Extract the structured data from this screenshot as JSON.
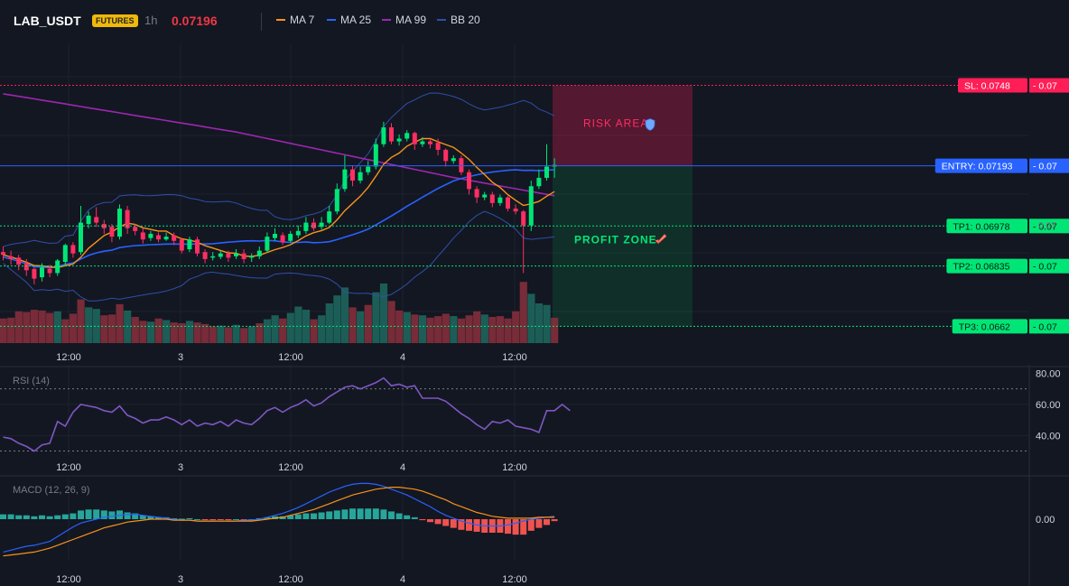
{
  "header": {
    "symbol": "LAB_USDT",
    "badge": "FUTURES",
    "interval": "1h",
    "price": "0.07196",
    "legend": [
      {
        "label": "MA 7",
        "color": "#f7931a"
      },
      {
        "label": "MA 25",
        "color": "#2962ff"
      },
      {
        "label": "MA 99",
        "color": "#9c27b0"
      },
      {
        "label": "BB 20",
        "color": "#2f4fa8"
      }
    ]
  },
  "colors": {
    "up": "#26a69a",
    "up_candle": "#00e676",
    "down": "#f23645",
    "down_candle": "#ff2e63",
    "sl": "#ff1e56",
    "entry": "#2962ff",
    "tp": "#00e676",
    "rsi": "#7e57c2",
    "macd": "#2962ff",
    "signal": "#f7931a",
    "hist_up": "#26a69a",
    "hist_down": "#ef5350"
  },
  "chart_data": [
    {
      "type": "candlestick",
      "price_range": [
        0.0656,
        0.0763
      ],
      "x_ticks": [
        "12:00",
        "3",
        "12:00",
        "4",
        "12:00"
      ],
      "levels": {
        "sl": {
          "label": "SL: 0.0748",
          "value": 0.0748,
          "tag": "0.07"
        },
        "entry": {
          "label": "ENTRY: 0.07193",
          "value": 0.07193,
          "tag": "0.07"
        },
        "tp1": {
          "label": "TP1: 0.06978",
          "value": 0.06978,
          "tag": "0.07"
        },
        "tp2": {
          "label": "TP2: 0.06835",
          "value": 0.06835,
          "tag": "0.07"
        },
        "tp3": {
          "label": "TP3: 0.0662",
          "value": 0.0662,
          "tag": "0.07"
        }
      },
      "axis_partial_label": "0.07",
      "zones": {
        "risk": "RISK AREA",
        "risk_icon": "shield-icon",
        "profit": "PROFIT ZONE",
        "profit_icon": "rocket-icon"
      },
      "candles": [
        [
          0.06885,
          0.06875,
          0.06905,
          0.06855
        ],
        [
          0.0687,
          0.0686,
          0.0689,
          0.0684
        ],
        [
          0.06865,
          0.0684,
          0.06875,
          0.0682
        ],
        [
          0.06845,
          0.0682,
          0.0686,
          0.068
        ],
        [
          0.06825,
          0.0679,
          0.0683,
          0.0677
        ],
        [
          0.06795,
          0.0683,
          0.06845,
          0.0678
        ],
        [
          0.06825,
          0.0681,
          0.0684,
          0.06795
        ],
        [
          0.0681,
          0.06855,
          0.0686,
          0.068
        ],
        [
          0.0685,
          0.0691,
          0.06915,
          0.0684
        ],
        [
          0.0691,
          0.0688,
          0.0692,
          0.06865
        ],
        [
          0.06885,
          0.0699,
          0.0705,
          0.06875
        ],
        [
          0.06985,
          0.07015,
          0.0703,
          0.0697
        ],
        [
          0.0701,
          0.0699,
          0.07045,
          0.06975
        ],
        [
          0.06985,
          0.0697,
          0.07,
          0.0695
        ],
        [
          0.06975,
          0.0694,
          0.06985,
          0.0692
        ],
        [
          0.0694,
          0.0704,
          0.07055,
          0.0693
        ],
        [
          0.07035,
          0.0697,
          0.0705,
          0.0695
        ],
        [
          0.06975,
          0.0696,
          0.06985,
          0.06945
        ],
        [
          0.06955,
          0.0693,
          0.0697,
          0.06915
        ],
        [
          0.06935,
          0.0695,
          0.0696,
          0.06925
        ],
        [
          0.06945,
          0.0693,
          0.06955,
          0.0692
        ],
        [
          0.0693,
          0.0694,
          0.06955,
          0.06925
        ],
        [
          0.06945,
          0.06925,
          0.06955,
          0.0691
        ],
        [
          0.0693,
          0.0689,
          0.06935,
          0.0688
        ],
        [
          0.06895,
          0.0693,
          0.0694,
          0.06885
        ],
        [
          0.0693,
          0.0688,
          0.0694,
          0.0687
        ],
        [
          0.06885,
          0.0686,
          0.06895,
          0.06845
        ],
        [
          0.06865,
          0.0687,
          0.06885,
          0.06855
        ],
        [
          0.06868,
          0.0688,
          0.0689,
          0.0686
        ],
        [
          0.0688,
          0.06865,
          0.0689,
          0.0685
        ],
        [
          0.0687,
          0.0688,
          0.06895,
          0.0686
        ],
        [
          0.0688,
          0.0686,
          0.06895,
          0.06845
        ],
        [
          0.06865,
          0.0687,
          0.0688,
          0.0685
        ],
        [
          0.0687,
          0.0689,
          0.06905,
          0.0686
        ],
        [
          0.0689,
          0.0694,
          0.06955,
          0.06885
        ],
        [
          0.06935,
          0.0695,
          0.0697,
          0.06925
        ],
        [
          0.06945,
          0.0692,
          0.06955,
          0.0691
        ],
        [
          0.06925,
          0.0695,
          0.0696,
          0.0692
        ],
        [
          0.06945,
          0.0696,
          0.0698,
          0.06935
        ],
        [
          0.0696,
          0.0699,
          0.0701,
          0.0695
        ],
        [
          0.0699,
          0.0697,
          0.07005,
          0.0696
        ],
        [
          0.06975,
          0.0699,
          0.0701,
          0.06965
        ],
        [
          0.0699,
          0.0703,
          0.0705,
          0.06985
        ],
        [
          0.0703,
          0.0711,
          0.0713,
          0.0702
        ],
        [
          0.0711,
          0.0718,
          0.0723,
          0.071
        ],
        [
          0.0718,
          0.0714,
          0.07195,
          0.0712
        ],
        [
          0.0714,
          0.0717,
          0.0719,
          0.0713
        ],
        [
          0.0717,
          0.0719,
          0.0721,
          0.0716
        ],
        [
          0.0719,
          0.0727,
          0.0729,
          0.0718
        ],
        [
          0.0727,
          0.0733,
          0.0735,
          0.0726
        ],
        [
          0.0733,
          0.0728,
          0.07345,
          0.0727
        ],
        [
          0.0728,
          0.0729,
          0.07305,
          0.07265
        ],
        [
          0.0729,
          0.0731,
          0.0732,
          0.0728
        ],
        [
          0.0731,
          0.0727,
          0.07315,
          0.0725
        ],
        [
          0.0727,
          0.0728,
          0.07295,
          0.0726
        ],
        [
          0.0728,
          0.0727,
          0.0729,
          0.07255
        ],
        [
          0.07275,
          0.0725,
          0.0729,
          0.0723
        ],
        [
          0.0725,
          0.0721,
          0.07255,
          0.0719
        ],
        [
          0.0721,
          0.0722,
          0.0723,
          0.072
        ],
        [
          0.0722,
          0.0717,
          0.0723,
          0.0716
        ],
        [
          0.0717,
          0.0711,
          0.0718,
          0.0709
        ],
        [
          0.0711,
          0.0708,
          0.0712,
          0.0706
        ],
        [
          0.0708,
          0.0709,
          0.071,
          0.0707
        ],
        [
          0.0709,
          0.0706,
          0.071,
          0.07045
        ],
        [
          0.0706,
          0.0708,
          0.0709,
          0.0705
        ],
        [
          0.0708,
          0.0704,
          0.07085,
          0.0703
        ],
        [
          0.0704,
          0.0703,
          0.07055,
          0.0702
        ],
        [
          0.0703,
          0.0698,
          0.07035,
          0.0681
        ],
        [
          0.0698,
          0.0712,
          0.0714,
          0.0696
        ],
        [
          0.0712,
          0.0715,
          0.0718,
          0.0711
        ],
        [
          0.0715,
          0.0719,
          0.0727,
          0.0714
        ],
        [
          0.0719,
          0.07196,
          0.0722,
          0.0715
        ]
      ],
      "volume": [
        [
          62,
          1
        ],
        [
          64,
          1
        ],
        [
          80,
          1
        ],
        [
          78,
          1
        ],
        [
          84,
          1
        ],
        [
          82,
          1
        ],
        [
          76,
          1
        ],
        [
          80,
          0
        ],
        [
          60,
          1
        ],
        [
          74,
          1
        ],
        [
          110,
          1
        ],
        [
          90,
          0
        ],
        [
          86,
          0
        ],
        [
          70,
          1
        ],
        [
          72,
          1
        ],
        [
          98,
          1
        ],
        [
          82,
          0
        ],
        [
          66,
          1
        ],
        [
          56,
          1
        ],
        [
          54,
          0
        ],
        [
          62,
          1
        ],
        [
          58,
          0
        ],
        [
          52,
          1
        ],
        [
          50,
          1
        ],
        [
          56,
          0
        ],
        [
          52,
          1
        ],
        [
          48,
          1
        ],
        [
          42,
          1
        ],
        [
          44,
          0
        ],
        [
          40,
          1
        ],
        [
          46,
          0
        ],
        [
          38,
          1
        ],
        [
          42,
          0
        ],
        [
          50,
          1
        ],
        [
          60,
          0
        ],
        [
          70,
          0
        ],
        [
          62,
          1
        ],
        [
          76,
          0
        ],
        [
          92,
          0
        ],
        [
          84,
          0
        ],
        [
          60,
          1
        ],
        [
          70,
          0
        ],
        [
          100,
          0
        ],
        [
          120,
          0
        ],
        [
          140,
          0
        ],
        [
          90,
          1
        ],
        [
          80,
          0
        ],
        [
          96,
          1
        ],
        [
          128,
          0
        ],
        [
          150,
          0
        ],
        [
          106,
          1
        ],
        [
          82,
          1
        ],
        [
          78,
          0
        ],
        [
          72,
          1
        ],
        [
          70,
          0
        ],
        [
          64,
          1
        ],
        [
          68,
          1
        ],
        [
          74,
          1
        ],
        [
          68,
          0
        ],
        [
          62,
          1
        ],
        [
          70,
          1
        ],
        [
          80,
          1
        ],
        [
          72,
          0
        ],
        [
          66,
          1
        ],
        [
          68,
          1
        ],
        [
          62,
          1
        ],
        [
          80,
          1
        ],
        [
          154,
          1
        ],
        [
          124,
          0
        ],
        [
          100,
          0
        ],
        [
          96,
          0
        ],
        [
          64,
          1
        ]
      ]
    },
    {
      "type": "line",
      "title": "RSI (14)",
      "ylim": [
        28,
        82
      ],
      "y_ticks": [
        80.0,
        60.0,
        40.0
      ],
      "x_ticks": [
        "12:00",
        "3",
        "12:00",
        "4",
        "12:00"
      ],
      "values": [
        39,
        38,
        35,
        33,
        30,
        34,
        35,
        49,
        46,
        55,
        60,
        59,
        58,
        56,
        55,
        59,
        53,
        51,
        48,
        50,
        50,
        52,
        50,
        47,
        50,
        46,
        48,
        47,
        49,
        46,
        50,
        48,
        47,
        51,
        56,
        58,
        55,
        58,
        60,
        63,
        59,
        61,
        65,
        68,
        71,
        72,
        70,
        72,
        74,
        77,
        72,
        73,
        71,
        72,
        64,
        64,
        64,
        62,
        58,
        54,
        51,
        47,
        44,
        49,
        48,
        50,
        46,
        45,
        44,
        42,
        56,
        56,
        60,
        56
      ]
    },
    {
      "type": "bar",
      "title": "MACD (12, 26, 9)",
      "ylim": [
        -0.00042,
        0.00042
      ],
      "y_ticks": [
        0.0
      ],
      "y_tick_labels": [
        "0.00"
      ],
      "x_ticks": [
        "12:00",
        "3",
        "12:00",
        "4",
        "12:00"
      ],
      "series": [
        {
          "name": "histogram",
          "values": [
            5e-05,
            5e-05,
            4e-05,
            4e-05,
            3e-05,
            4e-05,
            3e-05,
            4e-05,
            5e-05,
            6e-05,
            9e-05,
            0.0001,
            0.0001,
            9e-05,
            8e-05,
            9e-05,
            7e-05,
            6e-05,
            4e-05,
            3e-05,
            2e-05,
            2e-05,
            1e-05,
            5e-06,
            1e-05,
            0,
            -1e-05,
            -1e-05,
            -5e-06,
            -1e-05,
            0,
            -1e-05,
            0,
            1e-05,
            2e-05,
            3e-05,
            3e-05,
            4e-05,
            5e-05,
            6e-05,
            6e-05,
            7e-05,
            8e-05,
            9e-05,
            0.0001,
            0.00011,
            0.00011,
            0.00011,
            0.00011,
            0.0001,
            8e-05,
            6e-05,
            4e-05,
            2e-05,
            -1e-05,
            -3e-05,
            -5e-05,
            -7e-05,
            -9e-05,
            -0.00011,
            -0.00012,
            -0.00013,
            -0.00014,
            -0.00014,
            -0.00014,
            -0.00015,
            -0.00016,
            -0.00016,
            -0.00012,
            -9e-05,
            -6e-05,
            -2e-05
          ]
        },
        {
          "name": "macd",
          "values": [
            -0.00034,
            -0.00032,
            -0.0003,
            -0.00028,
            -0.00027,
            -0.00025,
            -0.00023,
            -0.00018,
            -0.00013,
            -8e-05,
            -4e-05,
            -2e-05,
            0.0,
            2e-05,
            3e-05,
            4e-05,
            5e-05,
            5e-05,
            4e-05,
            3e-05,
            2e-05,
            1e-05,
            0.0,
            -1e-05,
            -1e-05,
            -2e-05,
            -2e-05,
            -2e-05,
            -2e-05,
            -2e-05,
            -2e-05,
            -1e-05,
            -1e-05,
            0.0,
            2e-05,
            4e-05,
            6e-05,
            9e-05,
            0.00012,
            0.00016,
            0.0002,
            0.00024,
            0.00028,
            0.00031,
            0.00034,
            0.00036,
            0.00037,
            0.00037,
            0.00036,
            0.00034,
            0.00031,
            0.00028,
            0.00025,
            0.00021,
            0.00017,
            0.00013,
            8e-05,
            4e-05,
            1e-05,
            -2e-05,
            -4e-05,
            -6e-05,
            -7e-05,
            -7e-05,
            -7e-05,
            -6e-05,
            -4e-05,
            -2e-05,
            0.0,
            1e-05,
            2e-05,
            3e-05
          ]
        },
        {
          "name": "signal",
          "values": [
            -0.00038,
            -0.00037,
            -0.00036,
            -0.00035,
            -0.00034,
            -0.00032,
            -0.0003,
            -0.00027,
            -0.00024,
            -0.00021,
            -0.00018,
            -0.00015,
            -0.00012,
            -9e-05,
            -7e-05,
            -5e-05,
            -3e-05,
            -2e-05,
            -1e-05,
            0.0,
            0.0,
            0.0,
            -1e-05,
            -1e-05,
            -1e-05,
            -2e-05,
            -2e-05,
            -2e-05,
            -2e-05,
            -2e-05,
            -2e-05,
            -2e-05,
            -2e-05,
            -1e-05,
            0.0,
            1e-05,
            2e-05,
            4e-05,
            6e-05,
            8e-05,
            0.0001,
            0.00013,
            0.00016,
            0.00019,
            0.00022,
            0.00025,
            0.00027,
            0.00029,
            0.00031,
            0.00032,
            0.00033,
            0.00033,
            0.00032,
            0.00031,
            0.00029,
            0.00026,
            0.00023,
            0.0002,
            0.00016,
            0.00013,
            0.0001,
            7e-05,
            5e-05,
            3e-05,
            2e-05,
            1e-05,
            1e-05,
            1e-05,
            1e-05,
            2e-05,
            2e-05,
            2e-05
          ]
        }
      ]
    }
  ]
}
